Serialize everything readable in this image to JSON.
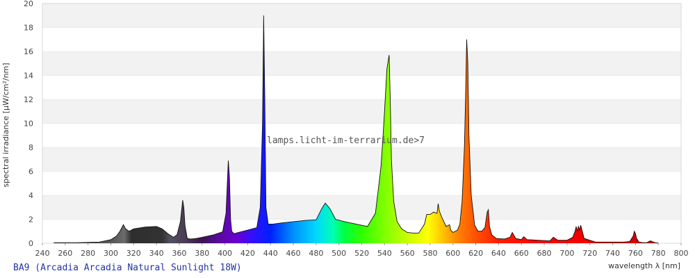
{
  "chart_data": {
    "type": "area",
    "title": "",
    "xlabel": "wavelength λ [nm]",
    "ylabel": "spectral irradiance [µW/cm²/nm]",
    "xlim": [
      240,
      800
    ],
    "ylim": [
      0,
      20
    ],
    "x_ticks": [
      240,
      260,
      280,
      300,
      320,
      340,
      360,
      380,
      400,
      420,
      440,
      460,
      480,
      500,
      520,
      540,
      560,
      580,
      600,
      620,
      640,
      660,
      680,
      700,
      720,
      740,
      760,
      780,
      800
    ],
    "y_ticks": [
      0,
      2,
      4,
      6,
      8,
      10,
      12,
      14,
      16,
      18,
      20
    ],
    "grid": "horizontal bands",
    "watermark": "lamps.licht-im-terrarium.de>7",
    "lamp_name": "BA9 (Arcadia Arcadia Natural Sunlight 18W)",
    "series": [
      {
        "x": [
          250,
          270,
          290,
          300,
          305,
          308,
          311,
          313,
          316,
          320,
          330,
          340,
          345,
          350,
          355,
          358,
          361,
          363,
          364,
          365,
          367,
          370,
          375,
          380,
          390,
          398,
          401,
          403,
          404,
          405,
          406,
          408,
          412,
          420,
          428,
          431,
          433,
          434,
          435,
          436,
          438,
          442,
          450,
          460,
          470,
          480,
          485,
          488,
          492,
          497,
          505,
          515,
          525,
          532,
          537,
          540,
          542,
          544,
          545,
          546,
          548,
          551,
          555,
          560,
          565,
          570,
          575,
          577,
          580,
          583,
          586,
          587,
          588,
          590,
          592,
          594,
          597,
          598,
          600,
          604,
          606,
          608,
          610,
          611,
          612,
          613,
          614,
          616,
          619,
          622,
          625,
          628,
          630,
          631,
          632,
          634,
          638,
          645,
          650,
          652,
          655,
          660,
          662,
          665,
          675,
          685,
          688,
          692,
          700,
          705,
          707,
          708,
          709,
          710,
          711,
          712,
          715,
          725,
          740,
          750,
          755,
          758,
          759,
          760,
          761,
          763,
          767,
          770,
          773,
          777,
          780
        ],
        "y": [
          0.05,
          0.05,
          0.1,
          0.3,
          0.6,
          1.0,
          1.55,
          1.2,
          1.0,
          1.2,
          1.35,
          1.4,
          1.2,
          0.8,
          0.5,
          0.7,
          1.8,
          3.6,
          3.0,
          1.5,
          0.4,
          0.35,
          0.4,
          0.5,
          0.7,
          0.95,
          2.5,
          6.9,
          5.5,
          2.0,
          1.0,
          0.8,
          0.9,
          1.1,
          1.3,
          3.0,
          10.0,
          19.0,
          12.0,
          3.0,
          1.6,
          1.6,
          1.7,
          1.8,
          1.9,
          1.95,
          2.9,
          3.35,
          2.9,
          2.0,
          1.8,
          1.6,
          1.4,
          2.5,
          6.5,
          11.0,
          14.5,
          15.7,
          12.0,
          7.0,
          3.5,
          1.8,
          1.2,
          0.9,
          0.85,
          0.85,
          1.6,
          2.4,
          2.4,
          2.6,
          2.5,
          3.3,
          2.7,
          2.2,
          1.8,
          1.4,
          1.55,
          1.1,
          0.9,
          1.1,
          1.6,
          3.5,
          8.0,
          12.0,
          17.0,
          15.0,
          9.0,
          4.0,
          1.5,
          1.0,
          1.0,
          1.3,
          2.6,
          2.8,
          1.4,
          0.7,
          0.4,
          0.35,
          0.5,
          0.9,
          0.4,
          0.3,
          0.55,
          0.3,
          0.25,
          0.2,
          0.5,
          0.25,
          0.25,
          0.5,
          1.0,
          1.4,
          1.0,
          1.4,
          1.1,
          1.5,
          0.4,
          0.1,
          0.1,
          0.1,
          0.15,
          0.6,
          1.0,
          0.8,
          0.4,
          0.1,
          0.05,
          0.05,
          0.2,
          0.05,
          0.02
        ]
      }
    ]
  }
}
